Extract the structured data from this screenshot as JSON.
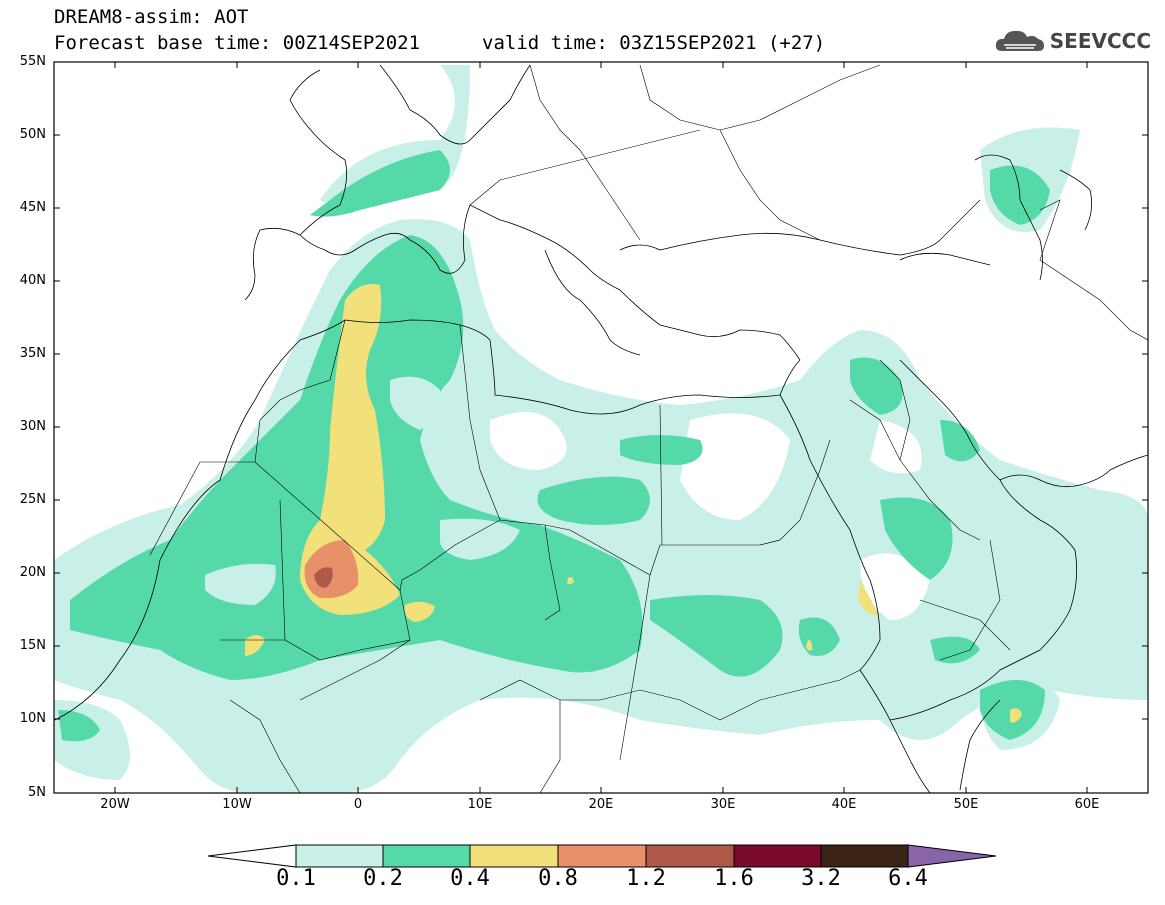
{
  "header": {
    "title_line1": "DREAM8-assim: AOT",
    "title_line2_left": "Forecast base time: 00Z14SEP2021",
    "title_line2_right": "valid time: 03Z15SEP2021 (+27)",
    "brand": "SEEVCCC",
    "brand_icon": "cloud-logo-icon"
  },
  "axes": {
    "y_labels": [
      "55N",
      "50N",
      "45N",
      "40N",
      "35N",
      "30N",
      "25N",
      "20N",
      "15N",
      "10N",
      "5N"
    ],
    "x_labels": [
      "20W",
      "10W",
      "0",
      "10E",
      "20E",
      "30E",
      "40E",
      "50E",
      "60E"
    ]
  },
  "colorbar": {
    "labels": [
      "0.1",
      "0.2",
      "0.4",
      "0.8",
      "1.2",
      "1.6",
      "3.2",
      "6.4"
    ],
    "colors": [
      "#ffffff",
      "#c8f0e8",
      "#56d9a8",
      "#f2e07a",
      "#e8906a",
      "#b0584a",
      "#7a0a2a",
      "#3a2214",
      "#8a64a8"
    ]
  }
}
